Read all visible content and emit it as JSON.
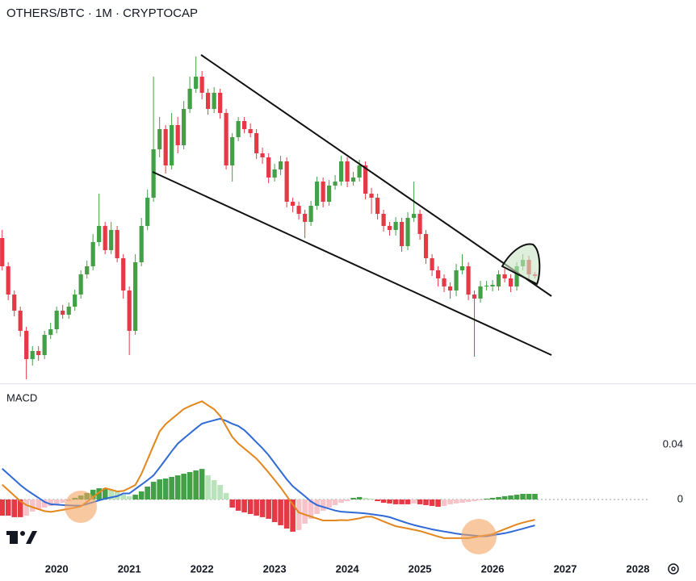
{
  "chart_data": [
    {
      "type": "candlestick",
      "title": "OTHERS/BTC · 1M · CRYPTOCAP",
      "x": [
        2019.25,
        2019.333,
        2019.417,
        2019.5,
        2019.583,
        2019.667,
        2019.75,
        2019.833,
        2019.917,
        2020,
        2020.083,
        2020.167,
        2020.25,
        2020.333,
        2020.417,
        2020.5,
        2020.583,
        2020.667,
        2020.75,
        2020.833,
        2020.917,
        2021,
        2021.083,
        2021.167,
        2021.25,
        2021.333,
        2021.417,
        2021.5,
        2021.583,
        2021.667,
        2021.75,
        2021.833,
        2021.917,
        2022,
        2022.083,
        2022.167,
        2022.25,
        2022.333,
        2022.417,
        2022.5,
        2022.583,
        2022.667,
        2022.75,
        2022.833,
        2022.917,
        2023,
        2023.083,
        2023.167,
        2023.25,
        2023.333,
        2023.417,
        2023.5,
        2023.583,
        2023.667,
        2023.75,
        2023.833,
        2023.917,
        2024,
        2024.083,
        2024.167,
        2024.25,
        2024.333,
        2024.417,
        2024.5,
        2024.583,
        2024.667,
        2024.75,
        2024.833,
        2024.917,
        2025,
        2025.083,
        2025.167,
        2025.25,
        2025.333,
        2025.417,
        2025.5,
        2025.583,
        2025.667,
        2025.75,
        2025.833,
        2025.917,
        2026,
        2026.083,
        2026.167,
        2026.25,
        2026.333,
        2026.417,
        2026.5,
        2026.583
      ],
      "open": [
        180,
        145,
        110,
        90,
        65,
        30,
        40,
        35,
        60,
        67,
        90,
        85,
        95,
        110,
        135,
        145,
        175,
        195,
        165,
        190,
        155,
        115,
        65,
        150,
        195,
        230,
        290,
        315,
        270,
        320,
        295,
        340,
        365,
        380,
        360,
        340,
        360,
        335,
        270,
        305,
        325,
        315,
        310,
        285,
        280,
        255,
        265,
        275,
        225,
        220,
        210,
        200,
        220,
        250,
        225,
        245,
        250,
        275,
        250,
        255,
        270,
        235,
        230,
        210,
        195,
        190,
        200,
        170,
        205,
        210,
        185,
        155,
        140,
        130,
        120,
        115,
        140,
        145,
        110,
        105,
        120,
        120,
        120,
        135,
        130,
        120,
        145,
        153,
        135
      ],
      "high": [
        190,
        150,
        115,
        95,
        70,
        46,
        46,
        65,
        75,
        95,
        97,
        100,
        116,
        140,
        152,
        185,
        235,
        200,
        200,
        195,
        160,
        120,
        160,
        205,
        240,
        380,
        330,
        320,
        335,
        330,
        350,
        380,
        405,
        387,
        365,
        367,
        365,
        340,
        310,
        330,
        330,
        322,
        315,
        292,
        285,
        272,
        282,
        280,
        230,
        225,
        215,
        226,
        256,
        255,
        252,
        258,
        282,
        280,
        262,
        277,
        275,
        242,
        235,
        215,
        200,
        206,
        205,
        212,
        250,
        215,
        190,
        160,
        145,
        135,
        125,
        148,
        160,
        150,
        115,
        127,
        127,
        128,
        140,
        142,
        135,
        150,
        160,
        158,
        138
      ],
      "low": [
        140,
        103,
        83,
        58,
        5,
        22,
        28,
        30,
        55,
        62,
        80,
        80,
        90,
        105,
        130,
        140,
        170,
        160,
        160,
        150,
        105,
        35,
        60,
        145,
        190,
        225,
        280,
        260,
        265,
        285,
        290,
        335,
        360,
        352,
        333,
        335,
        328,
        265,
        250,
        300,
        310,
        305,
        278,
        272,
        248,
        250,
        258,
        218,
        212,
        203,
        180,
        195,
        215,
        218,
        220,
        240,
        245,
        243,
        245,
        250,
        228,
        210,
        203,
        188,
        183,
        183,
        163,
        165,
        200,
        178,
        148,
        133,
        120,
        113,
        105,
        108,
        135,
        103,
        33,
        100,
        115,
        114,
        115,
        125,
        113,
        115,
        140,
        128,
        130
      ],
      "close": [
        145,
        110,
        90,
        65,
        30,
        40,
        35,
        60,
        67,
        90,
        85,
        95,
        110,
        135,
        145,
        175,
        195,
        165,
        190,
        155,
        115,
        65,
        150,
        195,
        230,
        290,
        315,
        270,
        320,
        295,
        340,
        365,
        380,
        360,
        340,
        360,
        335,
        270,
        305,
        325,
        315,
        310,
        285,
        280,
        255,
        265,
        275,
        225,
        220,
        210,
        200,
        220,
        250,
        225,
        245,
        250,
        275,
        250,
        255,
        270,
        235,
        230,
        210,
        195,
        190,
        200,
        170,
        205,
        210,
        185,
        155,
        140,
        130,
        120,
        115,
        140,
        145,
        110,
        105,
        120,
        121,
        122,
        135,
        130,
        120,
        145,
        153,
        135,
        133
      ],
      "up_color": "#43a047",
      "down_color": "#e53946",
      "xlim": [
        2019.22,
        2028.8
      ],
      "xticks": [
        2020,
        2021,
        2022,
        2023,
        2024,
        2025,
        2026,
        2027,
        2028
      ],
      "ylim": [
        0,
        435
      ]
    },
    {
      "type": "macd",
      "title": "MACD",
      "series": [
        {
          "color": "#2f6ad6",
          "values": [
            0.0225,
            0.0185,
            0.0146,
            0.0106,
            0.0071,
            0.0041,
            0.0012,
            -0.0018,
            -0.0035,
            -0.0038,
            -0.0041,
            -0.0043,
            -0.0045,
            -0.0046,
            -0.0033,
            -0.002,
            -0.0006,
            0.0006,
            0.0015,
            0.0024,
            0.0044,
            0.0044,
            0.0076,
            0.0108,
            0.0141,
            0.0175,
            0.0233,
            0.0292,
            0.0351,
            0.0408,
            0.0445,
            0.0482,
            0.0519,
            0.0553,
            0.0566,
            0.0578,
            0.0589,
            0.0573,
            0.0552,
            0.0536,
            0.0506,
            0.0462,
            0.0417,
            0.0373,
            0.0323,
            0.0265,
            0.0206,
            0.0147,
            0.0097,
            0.006,
            0.0024,
            -0.0014,
            -0.0041,
            -0.0054,
            -0.0067,
            -0.0081,
            -0.0089,
            -0.0092,
            -0.0095,
            -0.0098,
            -0.0102,
            -0.0108,
            -0.0114,
            -0.012,
            -0.0129,
            -0.0144,
            -0.0159,
            -0.0173,
            -0.0186,
            -0.0197,
            -0.0207,
            -0.0218,
            -0.0226,
            -0.0234,
            -0.0241,
            -0.0249,
            -0.0255,
            -0.0259,
            -0.0263,
            -0.0268,
            -0.0268,
            -0.026,
            -0.0253,
            -0.0246,
            -0.0236,
            -0.0225,
            -0.0213,
            -0.0201,
            -0.0189
          ]
        },
        {
          "color": "#e3861c",
          "values": [
            0.0108,
            0.0068,
            0.0028,
            -0.0012,
            -0.0041,
            -0.0056,
            -0.0071,
            -0.0085,
            -0.0091,
            -0.0083,
            -0.0076,
            -0.0068,
            -0.006,
            -0.0051,
            -0.0017,
            0.0017,
            0.0051,
            0.0082,
            0.0071,
            0.0059,
            0.0062,
            0.0083,
            0.0106,
            0.0187,
            0.029,
            0.0393,
            0.0496,
            0.055,
            0.0587,
            0.0624,
            0.066,
            0.0681,
            0.0699,
            0.0716,
            0.0687,
            0.0658,
            0.061,
            0.0533,
            0.0456,
            0.0408,
            0.0372,
            0.0335,
            0.0298,
            0.0249,
            0.0196,
            0.0143,
            0.0087,
            0.0025,
            -0.0036,
            -0.0095,
            -0.011,
            -0.0125,
            -0.0139,
            -0.0153,
            -0.0153,
            -0.0153,
            -0.015,
            -0.0152,
            -0.0145,
            -0.0138,
            -0.0126,
            -0.0125,
            -0.0142,
            -0.016,
            -0.0178,
            -0.0195,
            -0.0203,
            -0.0212,
            -0.0221,
            -0.023,
            -0.0243,
            -0.0257,
            -0.027,
            -0.0282,
            -0.0282,
            -0.0282,
            -0.0282,
            -0.0282,
            -0.0275,
            -0.0267,
            -0.026,
            -0.0252,
            -0.0234,
            -0.0216,
            -0.0199,
            -0.0182,
            -0.0169,
            -0.0158,
            -0.0148
          ]
        }
      ],
      "histogram": [
        -0.0118,
        -0.0118,
        -0.0129,
        -0.0129,
        -0.0118,
        -0.0088,
        -0.0071,
        -0.0059,
        -0.0047,
        -0.0035,
        -0.0024,
        -0.0012,
        0.0012,
        0.0029,
        0.0047,
        0.0071,
        0.0082,
        0.0082,
        0.0071,
        0.0059,
        0.0035,
        0.0024,
        0.0035,
        0.0059,
        0.0094,
        0.0129,
        0.0147,
        0.0153,
        0.0165,
        0.0176,
        0.0188,
        0.02,
        0.0212,
        0.0223,
        0.0176,
        0.0141,
        0.0106,
        0.0047,
        -0.0059,
        -0.0082,
        -0.0094,
        -0.0106,
        -0.0118,
        -0.0129,
        -0.0141,
        -0.0165,
        -0.0188,
        -0.0212,
        -0.0235,
        -0.0223,
        -0.0176,
        -0.0141,
        -0.0106,
        -0.0082,
        -0.0059,
        -0.0041,
        -0.0024,
        -0.0012,
        0.0012,
        0.0018,
        0.0012,
        0.0006,
        -0.0012,
        -0.0024,
        -0.0029,
        -0.0035,
        -0.0035,
        -0.0035,
        -0.0029,
        -0.0035,
        -0.0041,
        -0.0047,
        -0.0053,
        -0.0047,
        -0.0035,
        -0.0029,
        -0.0024,
        -0.0018,
        -0.0012,
        -0.0006,
        0.0006,
        0.0012,
        0.0018,
        0.0024,
        0.0029,
        0.0035,
        0.0041,
        0.0041,
        0.0041
      ],
      "histogram_colors": {
        "grow_above": "#43a047",
        "fall_above": "#b9e3bb",
        "grow_below": "#f7c3c8",
        "fall_below": "#e53946"
      },
      "ylim": [
        -0.0418,
        0.0818
      ],
      "yticks": [
        0,
        0.04
      ]
    }
  ]
}
